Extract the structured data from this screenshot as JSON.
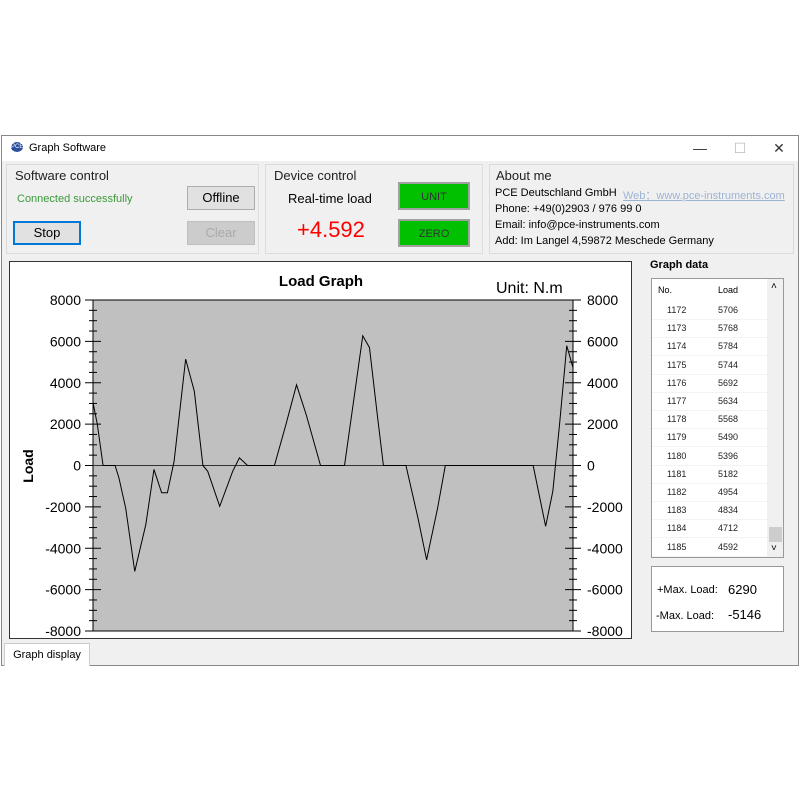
{
  "window": {
    "title": "Graph Software",
    "minimize": "—",
    "maximize": "☐",
    "close": "✕"
  },
  "software_control": {
    "title": "Software control",
    "status": "Connected successfully",
    "status_color": "#3a9a3a",
    "offline_label": "Offline",
    "stop_label": "Stop",
    "clear_label": "Clear"
  },
  "device_control": {
    "title": "Device control",
    "realtime_label": "Real-time load",
    "realtime_value": "+4.592",
    "value_color": "#ff0000",
    "unit_label": "UNIT",
    "zero_label": "ZERO",
    "button_color": "#00c000"
  },
  "about": {
    "title": "About me",
    "company": "PCE Deutschland GmbH",
    "web": "Web：www.pce-instruments.com",
    "phone": "Phone: +49(0)2903 / 976 99 0",
    "email": "Email: info@pce-instruments.com",
    "address": "Add: Im Langel 4,59872 Meschede Germany"
  },
  "graph_data": {
    "title": "Graph data",
    "columns": [
      "No.",
      "Load"
    ],
    "rows": [
      [
        "1172",
        "5706"
      ],
      [
        "1173",
        "5768"
      ],
      [
        "1174",
        "5784"
      ],
      [
        "1175",
        "5744"
      ],
      [
        "1176",
        "5692"
      ],
      [
        "1177",
        "5634"
      ],
      [
        "1178",
        "5568"
      ],
      [
        "1179",
        "5490"
      ],
      [
        "1180",
        "5396"
      ],
      [
        "1181",
        "5182"
      ],
      [
        "1182",
        "4954"
      ],
      [
        "1183",
        "4834"
      ],
      [
        "1184",
        "4712"
      ],
      [
        "1185",
        "4592"
      ]
    ],
    "scroll_up": "˄",
    "scroll_down": "˅"
  },
  "max": {
    "pos_label": "+Max. Load:",
    "pos_value": "6290",
    "neg_label": "-Max. Load:",
    "neg_value": "-5146"
  },
  "tabs": {
    "graph_display": "Graph display"
  },
  "chart_data": {
    "type": "line",
    "title": "Load Graph",
    "unit_label": "Unit:  N.m",
    "ylabel": "Load",
    "xlabel": "",
    "ylim": [
      -8000,
      8000
    ],
    "yticks": [
      8000,
      6000,
      4000,
      2000,
      0,
      -2000,
      -4000,
      -6000,
      -8000
    ],
    "grid": false,
    "background": "#c0c0c0",
    "series": [
      {
        "x": [
          0,
          0.9,
          2.1,
          4.6,
          5.4,
          6.8,
          8.7,
          11.0,
          12.7,
          14.3,
          15.5,
          16.9,
          19.3,
          21.1,
          22.9,
          23.9,
          26.4,
          29.1,
          30.5,
          32.2,
          37.8,
          40.2,
          42.4,
          44.4,
          47.4,
          52.4,
          54.1,
          56.2,
          57.6,
          59.3,
          60.5,
          65.2,
          67.7,
          69.5,
          71.8,
          73.4,
          91.7,
          94.3,
          95.8,
          97.2,
          98.7,
          100
        ],
        "y": [
          3040,
          1990,
          0,
          0,
          -600,
          -2050,
          -5120,
          -2860,
          -190,
          -1320,
          -1320,
          210,
          5140,
          3600,
          0,
          -280,
          -1970,
          -280,
          370,
          0,
          0,
          1990,
          3900,
          2470,
          0,
          0,
          2800,
          6270,
          5700,
          2310,
          0,
          0,
          -2540,
          -4560,
          -2050,
          0,
          0,
          -2940,
          -1240,
          1990,
          5790,
          4730
        ]
      }
    ]
  }
}
